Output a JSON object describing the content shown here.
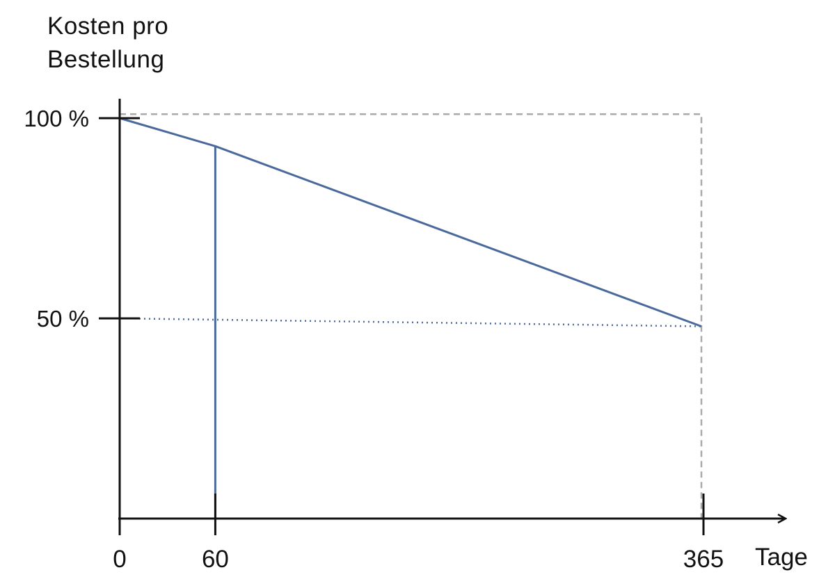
{
  "chart_data": {
    "type": "line",
    "ylabel_lines": [
      "Kosten pro",
      "Bestellung"
    ],
    "xlabel": "Tage",
    "x_ticks": [
      {
        "value": 0,
        "label": "0"
      },
      {
        "value": 60,
        "label": "60"
      },
      {
        "value": 365,
        "label": "365"
      }
    ],
    "y_ticks": [
      {
        "value": 100,
        "label": "100 %"
      },
      {
        "value": 50,
        "label": "50 %"
      }
    ],
    "xlim": [
      0,
      365
    ],
    "ylim": [
      0,
      100
    ],
    "series": [
      {
        "x": [
          0,
          60,
          365
        ],
        "y": [
          100,
          93,
          48
        ],
        "color": "#4a6a9c"
      }
    ],
    "reference_lines": [
      {
        "style": "dashed",
        "color": "#aaaaaa",
        "points": [
          [
            0,
            101
          ],
          [
            365,
            101
          ],
          [
            365,
            0
          ]
        ]
      },
      {
        "style": "dotted",
        "color": "#4a6a9c",
        "points": [
          [
            0,
            50
          ],
          [
            365,
            48
          ]
        ]
      },
      {
        "style": "solid",
        "color": "#4a6a9c",
        "points": [
          [
            60,
            93
          ],
          [
            60,
            0
          ]
        ]
      }
    ],
    "grid": false,
    "legend": "none"
  }
}
